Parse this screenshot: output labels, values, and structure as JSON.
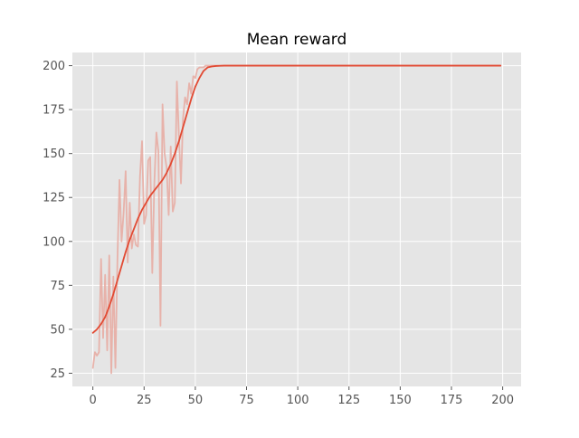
{
  "chart_data": {
    "type": "line",
    "title": "Mean reward",
    "xlabel": "",
    "ylabel": "",
    "xlim": [
      -10,
      209
    ],
    "ylim": [
      17.5,
      207.5
    ],
    "xticks": [
      0,
      25,
      50,
      75,
      100,
      125,
      150,
      175,
      200
    ],
    "yticks": [
      25,
      50,
      75,
      100,
      125,
      150,
      175,
      200
    ],
    "grid": true,
    "legend": "none",
    "series": [
      {
        "style": "raw",
        "color": "#e8a9a0",
        "x": [
          0,
          1,
          2,
          3,
          4,
          5,
          6,
          7,
          8,
          9,
          10,
          11,
          12,
          13,
          14,
          15,
          16,
          17,
          18,
          19,
          20,
          21,
          22,
          23,
          24,
          25,
          26,
          27,
          28,
          29,
          30,
          31,
          32,
          33,
          34,
          35,
          36,
          37,
          38,
          39,
          40,
          41,
          42,
          43,
          44,
          45,
          46,
          47,
          48,
          49,
          50,
          51,
          52,
          53,
          54,
          55,
          56,
          57,
          58,
          59,
          60,
          61,
          62,
          63,
          64,
          65,
          66,
          67,
          68,
          69,
          70,
          75,
          100,
          125,
          150,
          175,
          199
        ],
        "y": [
          28,
          37,
          35,
          37,
          90,
          45,
          81,
          38,
          92,
          25,
          80,
          28,
          90,
          135,
          100,
          116,
          140,
          88,
          122,
          96,
          104,
          98,
          97,
          137,
          157,
          110,
          115,
          146,
          148,
          82,
          133,
          162,
          151,
          52,
          178,
          150,
          142,
          115,
          154,
          117,
          122,
          191,
          160,
          133,
          170,
          182,
          178,
          190,
          184,
          194,
          193,
          198,
          199,
          199,
          199,
          200,
          200,
          200,
          200,
          200,
          200,
          200,
          200,
          200,
          200,
          200,
          200,
          200,
          200,
          200,
          200,
          200,
          200,
          200,
          200,
          200,
          200
        ]
      },
      {
        "style": "smoothed",
        "color": "#e24a33",
        "x": [
          0,
          2,
          4,
          6,
          8,
          10,
          12,
          14,
          16,
          18,
          20,
          22,
          24,
          26,
          28,
          30,
          32,
          34,
          36,
          38,
          40,
          42,
          44,
          46,
          48,
          50,
          52,
          54,
          56,
          58,
          60,
          62,
          64,
          66,
          68,
          70,
          75,
          100,
          125,
          150,
          175,
          199
        ],
        "y": [
          48,
          50,
          53,
          57,
          63,
          70,
          78,
          86,
          94,
          101,
          107,
          113,
          118,
          122,
          126,
          129,
          132,
          135,
          139,
          144,
          150,
          157,
          165,
          173,
          181,
          188,
          193,
          197,
          199,
          199.5,
          199.8,
          199.9,
          200,
          200,
          200,
          200,
          200,
          200,
          200,
          200,
          200,
          200
        ]
      }
    ]
  }
}
